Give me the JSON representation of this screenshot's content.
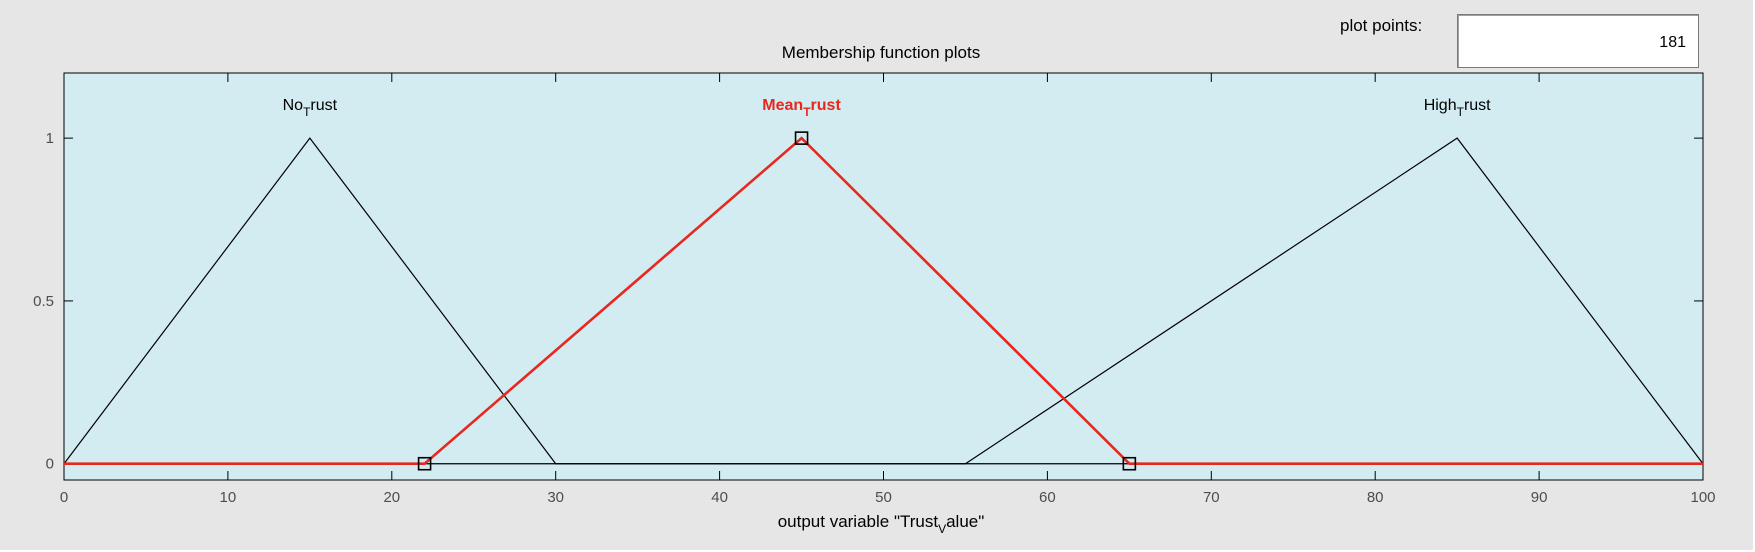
{
  "plot_points": {
    "label": "plot points:",
    "value": "181"
  },
  "chart_data": {
    "type": "line",
    "title": "Membership function plots",
    "xlabel": {
      "text": "output variable \"Trust",
      "sub": "V",
      "text_after": "alue\""
    },
    "ylabel": "",
    "xlim": [
      0,
      100
    ],
    "ylim": [
      -0.05,
      1.2
    ],
    "x_ticks": [
      0,
      10,
      20,
      30,
      40,
      50,
      60,
      70,
      80,
      90,
      100
    ],
    "y_ticks": [
      0,
      0.5,
      1
    ],
    "y_tick_labels": [
      "0",
      "0.5",
      "1"
    ],
    "grid": false,
    "background": "#d3ecf2",
    "series": [
      {
        "name": "NoTrust",
        "label_main": "No",
        "label_sub": "T",
        "label_after": "rust",
        "color": "#000000",
        "selected": false,
        "x": [
          0,
          15,
          30,
          100
        ],
        "y": [
          0,
          1,
          0,
          0
        ]
      },
      {
        "name": "MeanTrust",
        "label_main": "Mean",
        "label_sub": "T",
        "label_after": "rust",
        "color": "#e8281e",
        "selected": true,
        "x": [
          0,
          22,
          45,
          65,
          100
        ],
        "y": [
          0,
          0,
          1,
          0,
          0
        ],
        "handles": [
          [
            22,
            0
          ],
          [
            45,
            1
          ],
          [
            65,
            0
          ]
        ]
      },
      {
        "name": "HighTrust",
        "label_main": "High",
        "label_sub": "T",
        "label_after": "rust",
        "color": "#000000",
        "selected": false,
        "x": [
          0,
          55,
          85,
          100
        ],
        "y": [
          0,
          0,
          1,
          0
        ]
      }
    ]
  }
}
